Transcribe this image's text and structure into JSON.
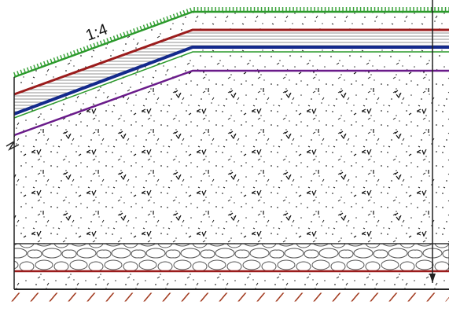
{
  "slope_label": "1:4"
}
